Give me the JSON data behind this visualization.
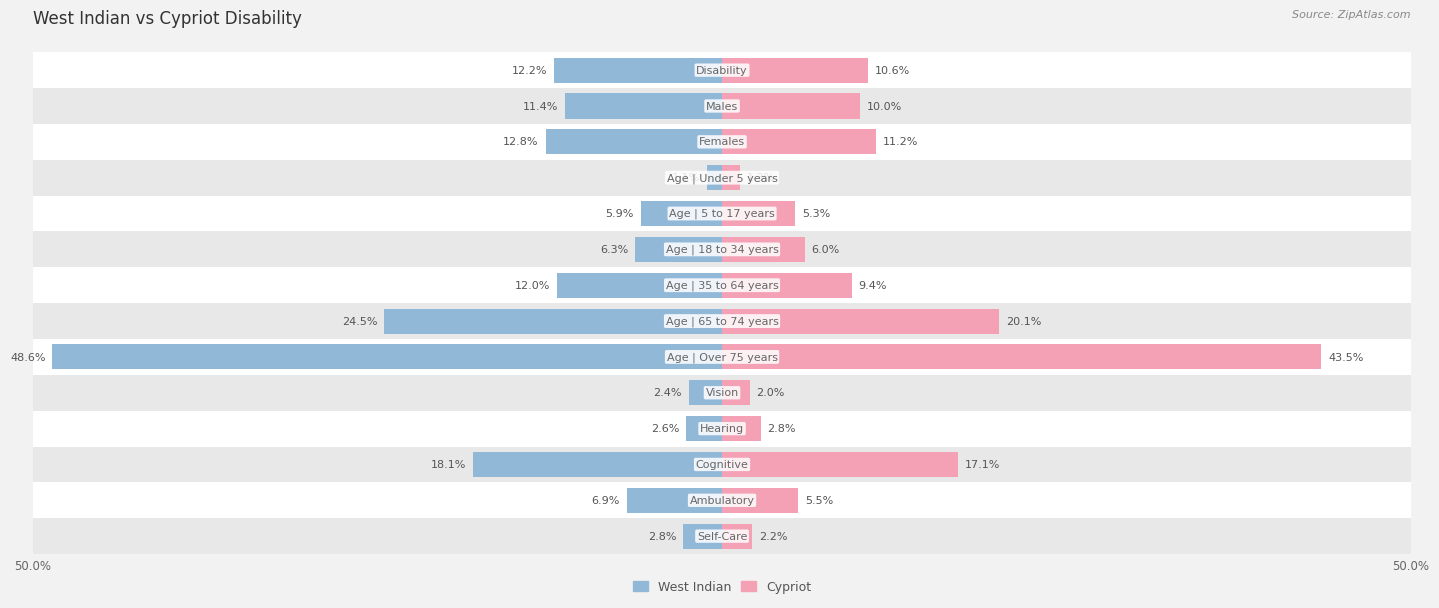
{
  "title": "West Indian vs Cypriot Disability",
  "source": "Source: ZipAtlas.com",
  "categories": [
    "Disability",
    "Males",
    "Females",
    "Age | Under 5 years",
    "Age | 5 to 17 years",
    "Age | 18 to 34 years",
    "Age | 35 to 64 years",
    "Age | 65 to 74 years",
    "Age | Over 75 years",
    "Vision",
    "Hearing",
    "Cognitive",
    "Ambulatory",
    "Self-Care"
  ],
  "west_indian": [
    12.2,
    11.4,
    12.8,
    1.1,
    5.9,
    6.3,
    12.0,
    24.5,
    48.6,
    2.4,
    2.6,
    18.1,
    6.9,
    2.8
  ],
  "cypriot": [
    10.6,
    10.0,
    11.2,
    1.3,
    5.3,
    6.0,
    9.4,
    20.1,
    43.5,
    2.0,
    2.8,
    17.1,
    5.5,
    2.2
  ],
  "max_val": 50.0,
  "bar_height": 0.7,
  "blue_color": "#92b8d8",
  "pink_color": "#f4a0b5",
  "bg_color": "#f2f2f2",
  "row_bg_white": "#ffffff",
  "row_bg_gray": "#e8e8e8",
  "label_fontsize": 8.0,
  "title_fontsize": 12,
  "legend_fontsize": 9,
  "axis_label_fontsize": 8.5,
  "value_label_color": "#555555",
  "cat_label_color": "#666666"
}
